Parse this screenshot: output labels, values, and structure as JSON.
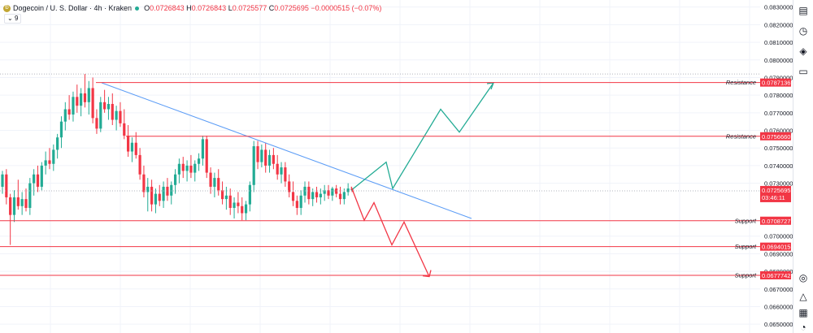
{
  "header": {
    "symbol": "Dogecoin / U. S. Dollar · 4h · Kraken",
    "o": "0.0726843",
    "h": "0.0726843",
    "l": "0.0725577",
    "c": "0.0725695",
    "change": "−0.0000515 (−0.07%)",
    "volume_chip": "9"
  },
  "colors": {
    "up": "#22ab94",
    "down": "#f23645",
    "level_line": "#f23645",
    "trendline": "#5b9cf6",
    "projection_up": "#22ab94",
    "projection_down": "#f23645",
    "label_bg": "#f23645"
  },
  "toolbar_icons": [
    "watchlist-icon",
    "alert-clock-icon",
    "layers-icon",
    "chat-icon",
    "target-icon",
    "triangle-icon",
    "calendar-icon",
    "bell-icon"
  ],
  "chart_data": {
    "type": "candlestick",
    "ylim": [
      0.0645,
      0.0834
    ],
    "y_ticks": [
      "0.0830000",
      "0.0820000",
      "0.0810000",
      "0.0800000",
      "0.0790000",
      "0.0780000",
      "0.0770000",
      "0.0760000",
      "0.0750000",
      "0.0740000",
      "0.0730000",
      "0.0700000",
      "0.0690000",
      "0.0680000",
      "0.0670000",
      "0.0660000",
      "0.0650000"
    ],
    "levels": [
      {
        "label": "Resistance",
        "value": "0.0787136",
        "y": 0.0787136
      },
      {
        "label": "Resistance",
        "value": "0.0756660",
        "y": 0.075666
      },
      {
        "label": "Support",
        "value": "0.0708727",
        "y": 0.0708727
      },
      {
        "label": "Support",
        "value": "0.0694015",
        "y": 0.0694015
      },
      {
        "label": "Support",
        "value": "0.0677742",
        "y": 0.0677742
      }
    ],
    "price_label": {
      "value": "0.0725695",
      "countdown": "03:46:11"
    },
    "trendline": [
      [
        125,
        0.0787
      ],
      [
        580,
        0.071
      ]
    ],
    "projection_up": [
      [
        432,
        0.0726
      ],
      [
        475,
        0.0742
      ],
      [
        483,
        0.0727
      ],
      [
        542,
        0.0772
      ],
      [
        565,
        0.0759
      ],
      [
        607,
        0.0787
      ]
    ],
    "projection_down": [
      [
        432,
        0.0728
      ],
      [
        448,
        0.0709
      ],
      [
        460,
        0.0719
      ],
      [
        482,
        0.0695
      ],
      [
        497,
        0.0708
      ],
      [
        528,
        0.0677
      ]
    ],
    "candles": [
      [
        0.0728,
        0.0737,
        0.0724,
        0.0735
      ],
      [
        0.0735,
        0.0738,
        0.0718,
        0.0722
      ],
      [
        0.0722,
        0.0724,
        0.0695,
        0.0712
      ],
      [
        0.0712,
        0.0726,
        0.0708,
        0.0722
      ],
      [
        0.0722,
        0.0732,
        0.0715,
        0.0717
      ],
      [
        0.0717,
        0.0725,
        0.0712,
        0.0721
      ],
      [
        0.0721,
        0.0727,
        0.0714,
        0.0716
      ],
      [
        0.0716,
        0.0733,
        0.0712,
        0.073
      ],
      [
        0.073,
        0.0738,
        0.0723,
        0.0735
      ],
      [
        0.0735,
        0.074,
        0.0725,
        0.0728
      ],
      [
        0.0728,
        0.0742,
        0.0726,
        0.074
      ],
      [
        0.074,
        0.0748,
        0.0735,
        0.0743
      ],
      [
        0.0743,
        0.075,
        0.0738,
        0.0741
      ],
      [
        0.0741,
        0.0752,
        0.0737,
        0.0749
      ],
      [
        0.0749,
        0.0758,
        0.0744,
        0.0756
      ],
      [
        0.0756,
        0.0768,
        0.075,
        0.0765
      ],
      [
        0.0765,
        0.0776,
        0.076,
        0.0772
      ],
      [
        0.0772,
        0.078,
        0.0766,
        0.0769
      ],
      [
        0.0769,
        0.0782,
        0.0765,
        0.0779
      ],
      [
        0.0779,
        0.0786,
        0.077,
        0.0774
      ],
      [
        0.0774,
        0.0784,
        0.0768,
        0.0781
      ],
      [
        0.0781,
        0.0792,
        0.0773,
        0.0776
      ],
      [
        0.0776,
        0.0788,
        0.0769,
        0.0784
      ],
      [
        0.0784,
        0.079,
        0.0764,
        0.0767
      ],
      [
        0.0767,
        0.0772,
        0.0758,
        0.0761
      ],
      [
        0.0761,
        0.0779,
        0.0759,
        0.0776
      ],
      [
        0.0776,
        0.0783,
        0.077,
        0.0772
      ],
      [
        0.0772,
        0.0779,
        0.0766,
        0.0775
      ],
      [
        0.0775,
        0.0781,
        0.0763,
        0.0766
      ],
      [
        0.0766,
        0.0774,
        0.076,
        0.0771
      ],
      [
        0.0771,
        0.0776,
        0.0762,
        0.0764
      ],
      [
        0.0764,
        0.0772,
        0.0755,
        0.0757
      ],
      [
        0.0757,
        0.0763,
        0.0745,
        0.0748
      ],
      [
        0.0748,
        0.0756,
        0.0742,
        0.0753
      ],
      [
        0.0753,
        0.0759,
        0.0744,
        0.0746
      ],
      [
        0.0746,
        0.075,
        0.0732,
        0.0735
      ],
      [
        0.0735,
        0.074,
        0.0722,
        0.0725
      ],
      [
        0.0725,
        0.0733,
        0.0714,
        0.0728
      ],
      [
        0.0728,
        0.0732,
        0.0714,
        0.0718
      ],
      [
        0.0718,
        0.0727,
        0.0713,
        0.0724
      ],
      [
        0.0724,
        0.0729,
        0.0717,
        0.072
      ],
      [
        0.072,
        0.0731,
        0.0716,
        0.0728
      ],
      [
        0.0728,
        0.0733,
        0.072,
        0.0723
      ],
      [
        0.0723,
        0.0731,
        0.0718,
        0.0729
      ],
      [
        0.0729,
        0.0738,
        0.0724,
        0.0735
      ],
      [
        0.0735,
        0.0744,
        0.073,
        0.0741
      ],
      [
        0.0741,
        0.0745,
        0.0733,
        0.0737
      ],
      [
        0.0737,
        0.0743,
        0.0731,
        0.074
      ],
      [
        0.074,
        0.0746,
        0.0733,
        0.0736
      ],
      [
        0.0736,
        0.0743,
        0.0731,
        0.0741
      ],
      [
        0.0741,
        0.0747,
        0.0737,
        0.0744
      ],
      [
        0.0744,
        0.0757,
        0.074,
        0.0755
      ],
      [
        0.0755,
        0.0757,
        0.0733,
        0.0736
      ],
      [
        0.0736,
        0.0739,
        0.0724,
        0.0728
      ],
      [
        0.0728,
        0.0736,
        0.0722,
        0.0733
      ],
      [
        0.0733,
        0.0738,
        0.0723,
        0.0726
      ],
      [
        0.0726,
        0.0731,
        0.0718,
        0.0721
      ],
      [
        0.0721,
        0.0728,
        0.0715,
        0.0723
      ],
      [
        0.0723,
        0.0727,
        0.0712,
        0.0716
      ],
      [
        0.0716,
        0.0722,
        0.071,
        0.0719
      ],
      [
        0.0719,
        0.0725,
        0.0713,
        0.0717
      ],
      [
        0.0717,
        0.0722,
        0.0709,
        0.0713
      ],
      [
        0.0713,
        0.072,
        0.0709,
        0.0718
      ],
      [
        0.0718,
        0.0731,
        0.0714,
        0.0729
      ],
      [
        0.0729,
        0.0754,
        0.0725,
        0.0751
      ],
      [
        0.0751,
        0.0754,
        0.0738,
        0.0742
      ],
      [
        0.0742,
        0.0752,
        0.0739,
        0.0749
      ],
      [
        0.0749,
        0.0753,
        0.0736,
        0.074
      ],
      [
        0.074,
        0.0749,
        0.0736,
        0.0746
      ],
      [
        0.0746,
        0.075,
        0.0738,
        0.0741
      ],
      [
        0.0741,
        0.0746,
        0.0732,
        0.0735
      ],
      [
        0.0735,
        0.0742,
        0.073,
        0.0739
      ],
      [
        0.0739,
        0.0742,
        0.0728,
        0.0731
      ],
      [
        0.0731,
        0.0735,
        0.0722,
        0.0725
      ],
      [
        0.0725,
        0.0731,
        0.0717,
        0.072
      ],
      [
        0.072,
        0.0723,
        0.0712,
        0.0716
      ],
      [
        0.0716,
        0.0726,
        0.0712,
        0.0723
      ],
      [
        0.0723,
        0.0731,
        0.0719,
        0.0728
      ],
      [
        0.0728,
        0.0731,
        0.0718,
        0.0721
      ],
      [
        0.0721,
        0.0727,
        0.0717,
        0.0725
      ],
      [
        0.0725,
        0.0728,
        0.0719,
        0.0722
      ],
      [
        0.0722,
        0.0727,
        0.0718,
        0.0724
      ],
      [
        0.0724,
        0.0729,
        0.072,
        0.0726
      ],
      [
        0.0726,
        0.0729,
        0.0721,
        0.0723
      ],
      [
        0.0723,
        0.0728,
        0.072,
        0.0727
      ],
      [
        0.0727,
        0.0729,
        0.0722,
        0.0724
      ],
      [
        0.0724,
        0.0728,
        0.0718,
        0.0721
      ],
      [
        0.0721,
        0.0727,
        0.0718,
        0.0725
      ],
      [
        0.0725,
        0.073,
        0.0723,
        0.0727
      ],
      [
        0.0727,
        0.0727,
        0.0725,
        0.0726
      ]
    ]
  }
}
